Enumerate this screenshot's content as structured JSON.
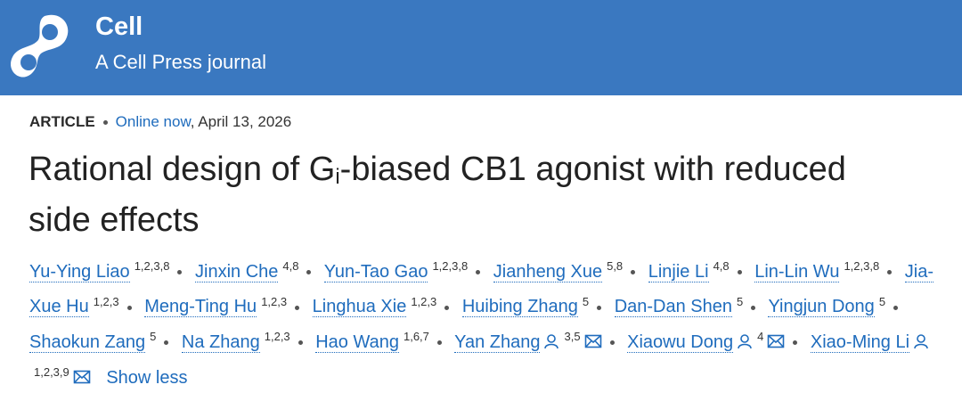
{
  "header": {
    "journal": "Cell",
    "tagline": "A Cell Press journal"
  },
  "meta": {
    "type": "ARTICLE",
    "status": "Online now",
    "date": ", April 13, 2026"
  },
  "title": {
    "before": "Rational design of G",
    "subscript": "i",
    "after": "-biased CB1 agonist with reduced side effects"
  },
  "authors": [
    {
      "name": "Yu-Ying Liao",
      "affiliations": "1,2,3,8"
    },
    {
      "name": "Jinxin Che",
      "affiliations": "4,8"
    },
    {
      "name": "Yun-Tao Gao",
      "affiliations": "1,2,3,8"
    },
    {
      "name": "Jianheng Xue",
      "affiliations": "5,8"
    },
    {
      "name": "Linjie Li",
      "affiliations": "4,8"
    },
    {
      "name": "Lin-Lin Wu",
      "affiliations": "1,2,3,8"
    },
    {
      "name": "Jia-Xue Hu",
      "affiliations": "1,2,3"
    },
    {
      "name": "Meng-Ting Hu",
      "affiliations": "1,2,3"
    },
    {
      "name": "Linghua Xie",
      "affiliations": "1,2,3"
    },
    {
      "name": "Huibing Zhang",
      "affiliations": "5"
    },
    {
      "name": "Dan-Dan Shen",
      "affiliations": "5"
    },
    {
      "name": "Yingjun Dong",
      "affiliations": "5"
    },
    {
      "name": "Shaokun Zang",
      "affiliations": "5"
    },
    {
      "name": "Na Zhang",
      "affiliations": "1,2,3"
    },
    {
      "name": "Hao Wang",
      "affiliations": "1,6,7"
    },
    {
      "name": "Yan Zhang",
      "affiliations": "3,5",
      "person_icon": true,
      "email_icon": true
    },
    {
      "name": "Xiaowu Dong",
      "affiliations": "4",
      "person_icon": true,
      "email_icon": true
    },
    {
      "name": "Xiao-Ming Li",
      "affiliations": "1,2,3,9",
      "person_icon": true,
      "email_icon": true
    }
  ],
  "toggle": "Show less"
}
